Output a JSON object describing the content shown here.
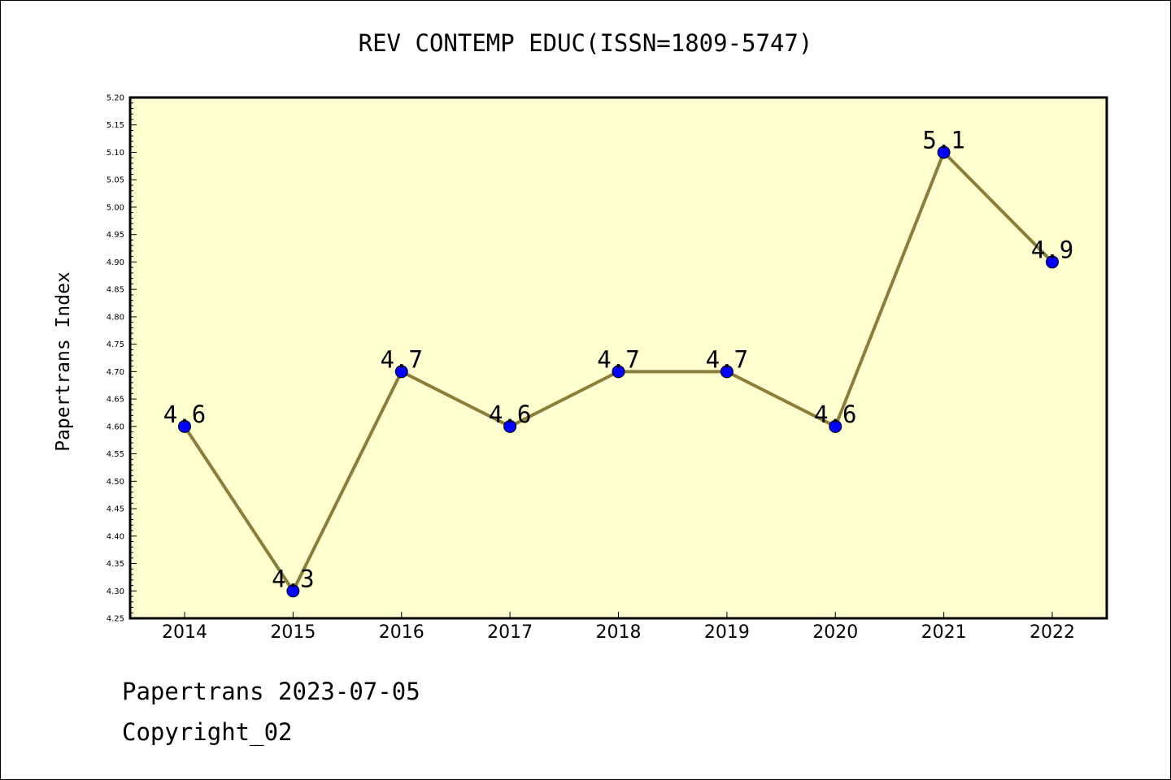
{
  "chart_data": {
    "type": "line",
    "title": "REV CONTEMP EDUC(ISSN=1809-5747)",
    "xlabel": "",
    "ylabel": "Papertrans Index",
    "categories": [
      "2014",
      "2015",
      "2016",
      "2017",
      "2018",
      "2019",
      "2020",
      "2021",
      "2022"
    ],
    "values": [
      4.6,
      4.3,
      4.7,
      4.6,
      4.7,
      4.7,
      4.6,
      5.1,
      4.9
    ],
    "data_labels": [
      "4.6",
      "4.3",
      "4.7",
      "4.6",
      "4.7",
      "4.7",
      "4.6",
      "5.1",
      "4.9"
    ],
    "ylim": [
      4.25,
      5.2
    ],
    "y_tick_step": 0.05,
    "grid": false,
    "line_color": "#8b7d3a",
    "marker_color": "#0000ff",
    "plot_background": "#ffffd0"
  },
  "footer": {
    "date_line": "Papertrans 2023-07-05",
    "copyright_line": "Copyright_02"
  }
}
